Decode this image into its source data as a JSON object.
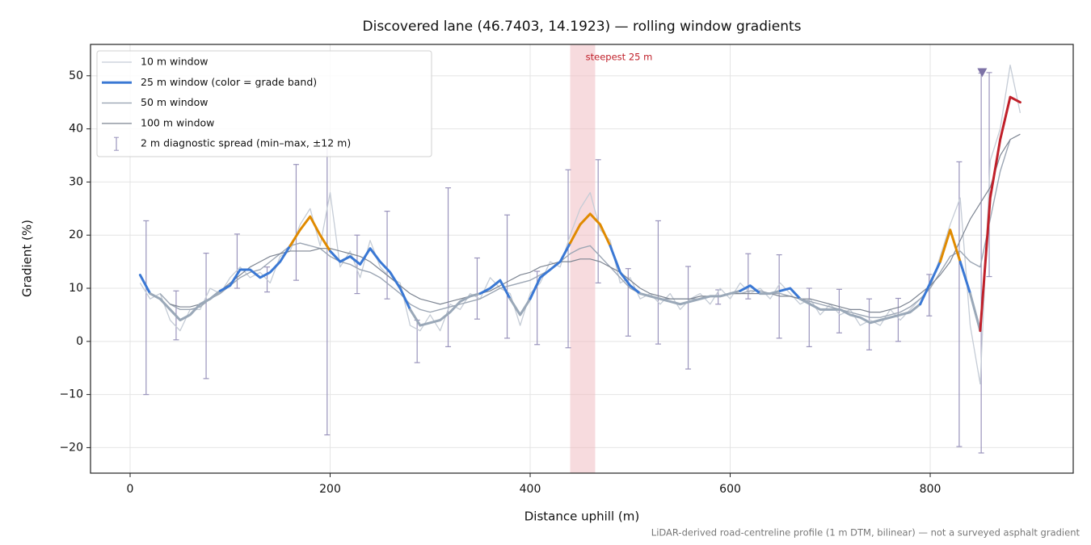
{
  "chart_data": {
    "type": "line",
    "title": "Discovered lane (46.7403, 14.1923) — rolling window gradients",
    "x_label": "Distance uphill (m)",
    "y_label": "Gradient (%)",
    "footnote": "LiDAR-derived road-centreline profile (1 m DTM, bilinear) — not a surveyed asphalt gradient",
    "xlim": [
      -39.6,
      943
    ],
    "ylim": [
      -24.8,
      55.9
    ],
    "xticks": [
      0,
      200,
      400,
      600,
      800
    ],
    "yticks": [
      {
        "value": -20,
        "label": "−20"
      },
      {
        "value": -10,
        "label": "−10"
      },
      0,
      10,
      20,
      30,
      40,
      50
    ],
    "grid": true,
    "legend": "upper left",
    "highlight": {
      "label": "steepest 25 m",
      "span": [
        440,
        465
      ],
      "color": "#f0b8be"
    },
    "marker": {
      "x": 852,
      "y": 50.5,
      "color": "#7d72a6"
    },
    "x": [
      10,
      20,
      30,
      40,
      50,
      60,
      70,
      80,
      90,
      100,
      110,
      120,
      130,
      140,
      150,
      160,
      170,
      180,
      190,
      200,
      210,
      220,
      230,
      240,
      250,
      260,
      270,
      280,
      290,
      300,
      310,
      320,
      330,
      340,
      350,
      360,
      370,
      380,
      390,
      400,
      410,
      420,
      430,
      440,
      450,
      460,
      470,
      480,
      490,
      500,
      510,
      520,
      530,
      540,
      550,
      560,
      570,
      580,
      590,
      600,
      610,
      620,
      630,
      640,
      650,
      660,
      670,
      680,
      690,
      700,
      710,
      720,
      730,
      740,
      750,
      760,
      770,
      780,
      790,
      800,
      810,
      820,
      830,
      840,
      850,
      860,
      870,
      880,
      890
    ],
    "series": [
      {
        "name": "10 m window",
        "color": "#c5ccd6",
        "width": 1.3,
        "values": [
          11,
          8,
          9,
          4,
          2,
          6,
          6,
          10,
          9,
          12,
          14,
          12,
          13,
          11,
          16,
          17,
          22,
          25,
          18,
          28,
          14,
          17,
          12,
          19,
          14,
          12,
          11,
          3,
          2,
          5,
          2,
          7,
          6,
          9,
          8,
          12,
          10,
          9,
          3,
          9,
          11,
          15,
          14,
          20,
          25,
          28,
          21,
          19,
          11,
          12,
          8,
          9,
          7,
          9,
          6,
          8,
          9,
          7,
          10,
          8,
          11,
          9,
          10,
          8,
          11,
          9,
          7,
          8,
          5,
          7,
          5,
          6,
          3,
          4,
          3,
          6,
          4,
          6,
          8,
          10,
          16,
          22,
          27,
          3,
          -8,
          34,
          40,
          52,
          43
        ]
      },
      {
        "name": "25 m window (color = grade band)",
        "color": "#3a78d4",
        "width": 3,
        "grade_bands": [
          {
            "below": 10,
            "color": "#9aa8b8"
          },
          {
            "below": 20,
            "color": "#3a78d4"
          },
          {
            "below": 25,
            "color": "#e08a00"
          },
          {
            "color": "#c0202a"
          }
        ],
        "values": [
          12.5,
          9,
          8,
          6,
          4,
          5,
          7,
          8,
          9.5,
          10.5,
          13.5,
          13.5,
          12,
          13,
          15,
          18,
          21,
          23.5,
          20,
          17,
          15,
          16,
          14.5,
          17.5,
          15,
          13,
          10,
          6,
          3,
          3.5,
          4,
          5.5,
          7.5,
          8.5,
          9,
          10,
          11.5,
          8,
          5,
          8,
          12,
          13.5,
          15,
          18.5,
          22,
          24,
          22,
          18,
          13,
          10.5,
          9,
          8.5,
          8,
          7.5,
          7,
          7.5,
          8,
          8.5,
          8.5,
          9,
          9.5,
          10.5,
          9,
          9,
          9.5,
          10,
          8,
          7,
          6,
          6,
          6,
          5,
          4.5,
          3.5,
          4,
          4.5,
          5,
          5.5,
          7,
          11,
          15,
          21,
          15,
          9,
          2,
          27,
          38,
          46,
          45
        ]
      },
      {
        "name": "50 m window",
        "color": "#9ca6b4",
        "width": 1.4,
        "values": [
          null,
          null,
          9,
          7,
          6,
          6,
          6.5,
          8,
          9,
          10.5,
          12,
          13,
          13.5,
          15,
          16.5,
          18,
          18.5,
          18,
          17.5,
          16,
          15,
          14.5,
          13.5,
          13,
          12,
          10.5,
          9,
          7,
          6,
          5.5,
          6,
          6.5,
          7,
          7.5,
          8,
          9,
          10,
          10.5,
          11,
          11.5,
          12.5,
          13.5,
          15,
          16.5,
          17.5,
          18,
          16,
          14,
          12,
          10,
          9,
          8.5,
          8,
          8,
          8,
          8,
          8,
          8.5,
          8.5,
          9,
          9,
          9.5,
          9.5,
          9,
          9,
          8.5,
          8,
          7.5,
          7,
          6.5,
          6,
          5.5,
          5,
          4.5,
          4.5,
          5,
          5.5,
          6.5,
          8,
          10,
          13,
          16,
          17,
          15,
          14,
          23,
          32,
          38,
          null
        ]
      },
      {
        "name": "100 m window",
        "color": "#7d8592",
        "width": 1.2,
        "values": [
          null,
          null,
          null,
          7,
          6.5,
          6.5,
          7,
          8,
          9.5,
          11,
          12.5,
          14,
          15,
          16,
          16.5,
          17,
          17,
          17,
          17.5,
          17.5,
          17,
          16.5,
          16,
          15,
          13.5,
          12,
          10.5,
          9,
          8,
          7.5,
          7,
          7.5,
          8,
          8.5,
          9,
          9.5,
          10.5,
          11.5,
          12.5,
          13,
          14,
          14.5,
          15,
          15,
          15.5,
          15.5,
          15,
          14,
          13,
          11.5,
          10,
          9,
          8.5,
          8,
          8,
          8,
          8.5,
          8.5,
          8.5,
          9,
          9,
          9,
          9,
          9,
          8.5,
          8.5,
          8,
          8,
          7.5,
          7,
          6.5,
          6,
          6,
          5.5,
          5.5,
          6,
          6.5,
          7.5,
          9,
          10.5,
          12.5,
          15,
          19,
          23,
          26,
          29,
          35,
          38,
          39
        ]
      }
    ],
    "error_bars": {
      "name": "2 m diagnostic spread (min–max, ±12 m)",
      "color": "#9a94bc",
      "x": [
        16,
        46,
        76,
        107,
        137,
        166,
        197,
        227,
        257,
        287,
        318,
        347,
        377,
        407,
        438,
        468,
        498,
        528,
        558,
        588,
        618,
        649,
        679,
        709,
        739,
        768,
        799,
        829,
        851,
        859
      ],
      "low": [
        -10,
        0.3,
        -7,
        10,
        9.3,
        11.5,
        -17.6,
        9,
        8,
        -4,
        -1,
        4.2,
        0.6,
        -0.6,
        -1.2,
        11,
        1,
        -0.5,
        -5.2,
        7,
        8,
        0.6,
        -1,
        1.6,
        -1.6,
        0,
        4.8,
        -19.8,
        -21,
        12.2
      ],
      "high": [
        22.7,
        9.5,
        16.6,
        20.2,
        14,
        33.3,
        37,
        20,
        24.5,
        4,
        28.9,
        15.7,
        23.8,
        13.2,
        32.3,
        34.2,
        13.7,
        22.7,
        14.1,
        9.7,
        16.5,
        16.3,
        10,
        9.8,
        8,
        8.1,
        12.6,
        33.8,
        50.5,
        50.6
      ]
    }
  }
}
